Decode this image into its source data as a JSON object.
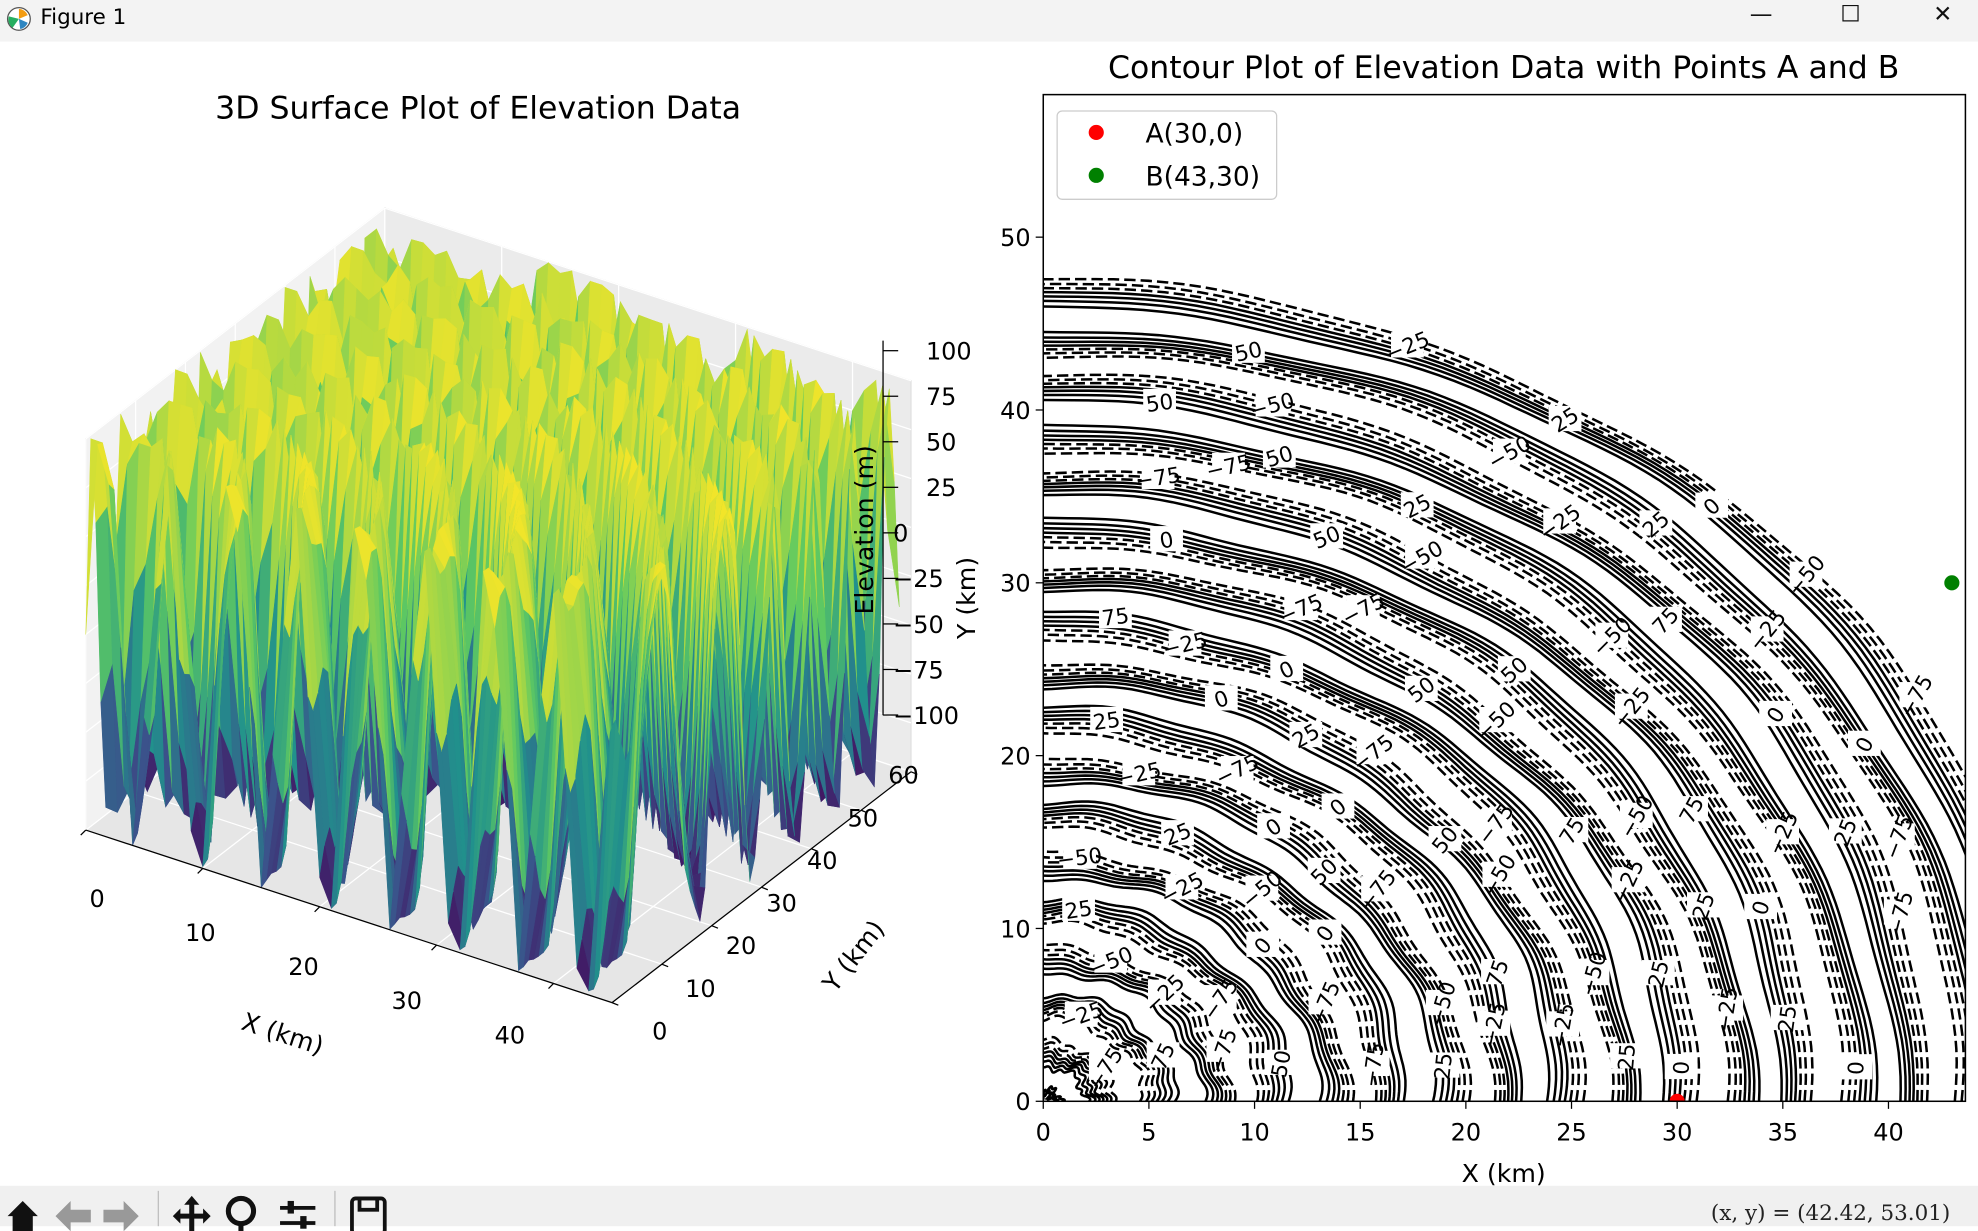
{
  "window": {
    "title": "Figure 1",
    "minimize_icon": "minimize-icon",
    "maximize_icon": "maximize-icon",
    "close_icon": "close-icon"
  },
  "toolbar": {
    "buttons": [
      "home-icon",
      "back-arrow-icon",
      "forward-arrow-icon",
      "pan-move-icon",
      "zoom-magnifier-icon",
      "configure-subplots-icon",
      "save-disk-icon"
    ],
    "coordinates": "(x, y) = (42.42, 53.01)"
  },
  "chart_data": [
    {
      "type": "surface",
      "title": "3D Surface Plot of Elevation Data",
      "xlabel": "X (km)",
      "ylabel": "Y (km)",
      "zlabel": "Elevation (m)",
      "xlim": [
        0,
        45
      ],
      "ylim": [
        0,
        60
      ],
      "zlim": [
        -100,
        100
      ],
      "xticks": [
        "0",
        "10",
        "20",
        "30",
        "40"
      ],
      "yticks": [
        "0",
        "10",
        "20",
        "30",
        "40",
        "50",
        "60"
      ],
      "zticks": [
        "100",
        "75",
        "50",
        "25",
        "0",
        "−25",
        "−50",
        "−75",
        "−100"
      ],
      "colormap": "viridis",
      "grid": true
    },
    {
      "type": "contour",
      "title": "Contour Plot of Elevation Data with Points A and B",
      "xlabel": "X (km)",
      "ylabel": "Y (km)",
      "xlim": [
        0,
        43.6
      ],
      "ylim": [
        0,
        58.2
      ],
      "xticks": [
        "0",
        "5",
        "10",
        "15",
        "20",
        "25",
        "30",
        "35",
        "40"
      ],
      "yticks": [
        "0",
        "10",
        "20",
        "30",
        "40",
        "50"
      ],
      "levels": [
        "-75",
        "-50",
        "-25",
        "0",
        "25",
        "50",
        "75"
      ],
      "line_color": "#000000",
      "negative_linestyle": "dashed",
      "points": [
        {
          "label": "A(30,0)",
          "x": 30,
          "y": 0,
          "color": "#ff0000"
        },
        {
          "label": "B(43,30)",
          "x": 43,
          "y": 30,
          "color": "#008000"
        }
      ],
      "legend": "top-left"
    }
  ]
}
